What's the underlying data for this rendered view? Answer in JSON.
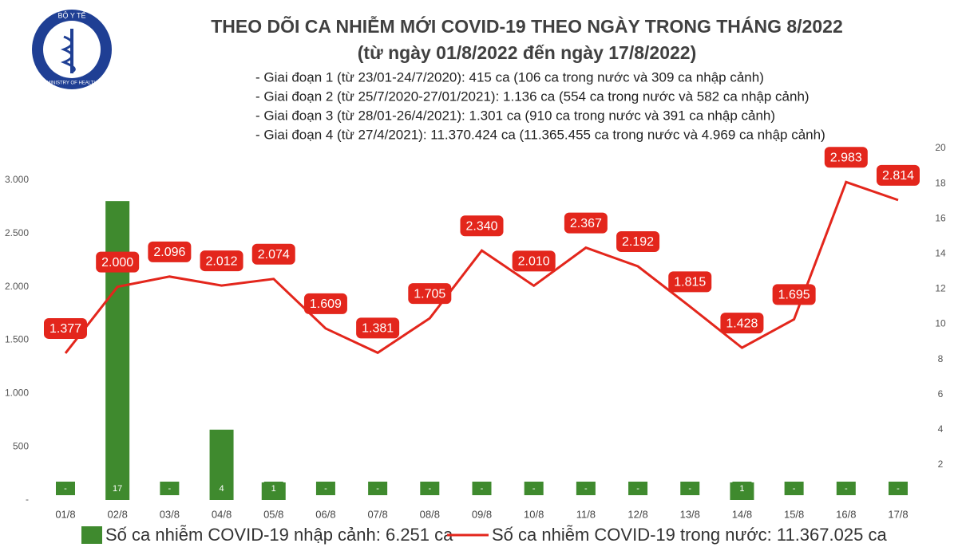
{
  "logo": {
    "top": "BỘ Y TẾ",
    "bottom": "MINISTRY OF HEALTH"
  },
  "chart_data": {
    "type": "bar-line",
    "title": "THEO DÕI CA NHIỄM MỚI COVID-19 THEO NGÀY TRONG THÁNG 8/2022",
    "subtitle": "(từ ngày 01/8/2022 đến ngày 17/8/2022)",
    "notes": [
      "- Giai đoạn 1 (từ 23/01-24/7/2020): 415 ca (106 ca trong nước và 309 ca nhập cảnh)",
      "- Giai đoạn 2 (từ 25/7/2020-27/01/2021): 1.136 ca (554 ca trong nước và 582 ca nhập cảnh)",
      "- Giai đoạn 3 (từ 28/01-26/4/2021): 1.301 ca (910 ca trong nước và 391 ca nhập cảnh)",
      "- Giai đoạn 4 (từ 27/4/2021): 11.370.424 ca (11.365.455 ca trong nước và 4.969 ca nhập cảnh)"
    ],
    "categories": [
      "01/8",
      "02/8",
      "03/8",
      "04/8",
      "05/8",
      "06/8",
      "07/8",
      "08/8",
      "09/8",
      "10/8",
      "11/8",
      "12/8",
      "13/8",
      "14/8",
      "15/8",
      "16/8",
      "17/8"
    ],
    "series": [
      {
        "name": "Số ca nhiễm COVID-19 nhập cảnh: 6.251 ca",
        "type": "bar",
        "axis": "y2",
        "color": "#3f8a2e",
        "values": [
          0,
          17,
          0,
          4,
          1,
          0,
          0,
          0,
          0,
          0,
          0,
          0,
          0,
          1,
          0,
          0,
          0
        ],
        "value_labels": [
          "-",
          "17",
          "-",
          "4",
          "1",
          "-",
          "-",
          "-",
          "-",
          "-",
          "-",
          "-",
          "-",
          "1",
          "-",
          "-",
          "-"
        ]
      },
      {
        "name": "Số ca nhiễm COVID-19 trong nước: 11.367.025 ca",
        "type": "line",
        "color": "#e3261c",
        "values": [
          1377,
          2000,
          2096,
          2012,
          2074,
          1609,
          1381,
          1705,
          2340,
          2010,
          2367,
          2192,
          1815,
          1428,
          1695,
          2983,
          2814
        ],
        "value_labels": [
          "1.377",
          "2.000",
          "2.096",
          "2.012",
          "2.074",
          "1.609",
          "1.381",
          "1.705",
          "2.340",
          "2.010",
          "2.367",
          "2.192",
          "1.815",
          "1.428",
          "1.695",
          "2.983",
          "2.814"
        ]
      }
    ],
    "ylim": [
      0,
      3000
    ],
    "yticks": [
      {
        "value": 0,
        "label": "-"
      },
      500,
      {
        "value": 1000,
        "label": "1.000"
      },
      {
        "value": 1500,
        "label": "1.500"
      },
      {
        "value": 2000,
        "label": "2.000"
      },
      {
        "value": 2500,
        "label": "2.500"
      },
      {
        "value": 3000,
        "label": "3.000"
      }
    ],
    "y2lim": [
      0,
      20
    ],
    "y2ticks": [
      2,
      4,
      6,
      8,
      10,
      12,
      14,
      16,
      18,
      20
    ],
    "grid": false
  }
}
